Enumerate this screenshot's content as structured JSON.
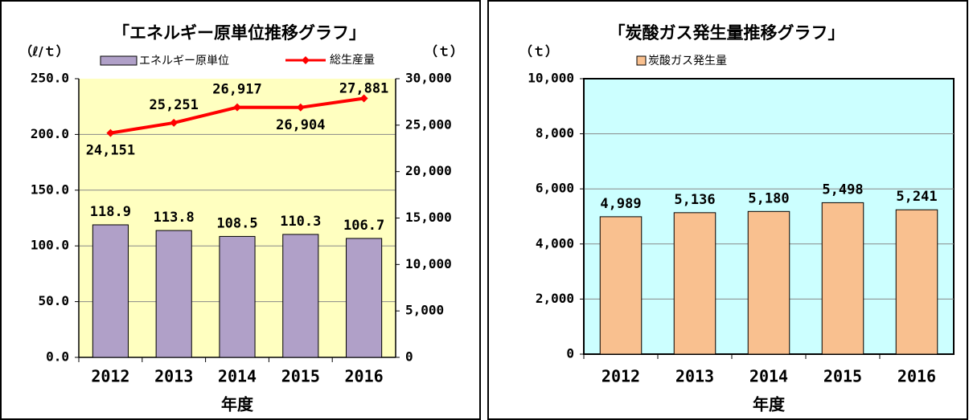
{
  "chart_data": [
    {
      "type": "bar",
      "title": "「エネルギー原単位推移グラフ」",
      "ylabel": "（ℓ/ｔ）",
      "y2label": "（ｔ）",
      "xlabel": "年度",
      "categories": [
        "2012",
        "2013",
        "2014",
        "2015",
        "2016"
      ],
      "series": [
        {
          "name": "エネルギー原単位",
          "color": "#b0a0c8",
          "values": [
            118.9,
            113.8,
            108.5,
            110.3,
            106.7
          ]
        },
        {
          "name": "総生産量",
          "color": "#ff0000",
          "type": "line",
          "axis": "y2",
          "values": [
            24151,
            25251,
            26917,
            26904,
            27881
          ],
          "value_labels": [
            "24,151",
            "25,251",
            "26,917",
            "26,904",
            "27,881"
          ]
        }
      ],
      "ylim": [
        0,
        250
      ],
      "yticks": [
        {
          "value": 0,
          "label": "0.0"
        },
        {
          "value": 50,
          "label": "50.0"
        },
        {
          "value": 100,
          "label": "100.0"
        },
        {
          "value": 150,
          "label": "150.0"
        },
        {
          "value": 200,
          "label": "200.0"
        },
        {
          "value": 250,
          "label": "250.0"
        }
      ],
      "y2lim": [
        0,
        30000
      ],
      "y2ticks": [
        0,
        {
          "value": 5000,
          "label": "5,000"
        },
        {
          "value": 10000,
          "label": "10,000"
        },
        {
          "value": 15000,
          "label": "15,000"
        },
        {
          "value": 20000,
          "label": "20,000"
        },
        {
          "value": 25000,
          "label": "25,000"
        },
        {
          "value": 30000,
          "label": "30,000"
        }
      ],
      "grid": true,
      "background": "#ffffc0"
    },
    {
      "type": "bar",
      "title": "「炭酸ガス発生量推移グラフ」",
      "ylabel": "（ｔ）",
      "xlabel": "年度",
      "categories": [
        "2012",
        "2013",
        "2014",
        "2015",
        "2016"
      ],
      "series": [
        {
          "name": "炭酸ガス発生量",
          "color": "#f9c08f",
          "values": [
            4989,
            5136,
            5180,
            5498,
            5241
          ],
          "value_labels": [
            "4,989",
            "5,136",
            "5,180",
            "5,498",
            "5,241"
          ]
        }
      ],
      "ylim": [
        0,
        10000
      ],
      "yticks": [
        0,
        {
          "value": 2000,
          "label": "2,000"
        },
        {
          "value": 4000,
          "label": "4,000"
        },
        {
          "value": 6000,
          "label": "6,000"
        },
        {
          "value": 8000,
          "label": "8,000"
        },
        {
          "value": 10000,
          "label": "10,000"
        }
      ],
      "grid": true,
      "background": "#ccffff"
    }
  ]
}
